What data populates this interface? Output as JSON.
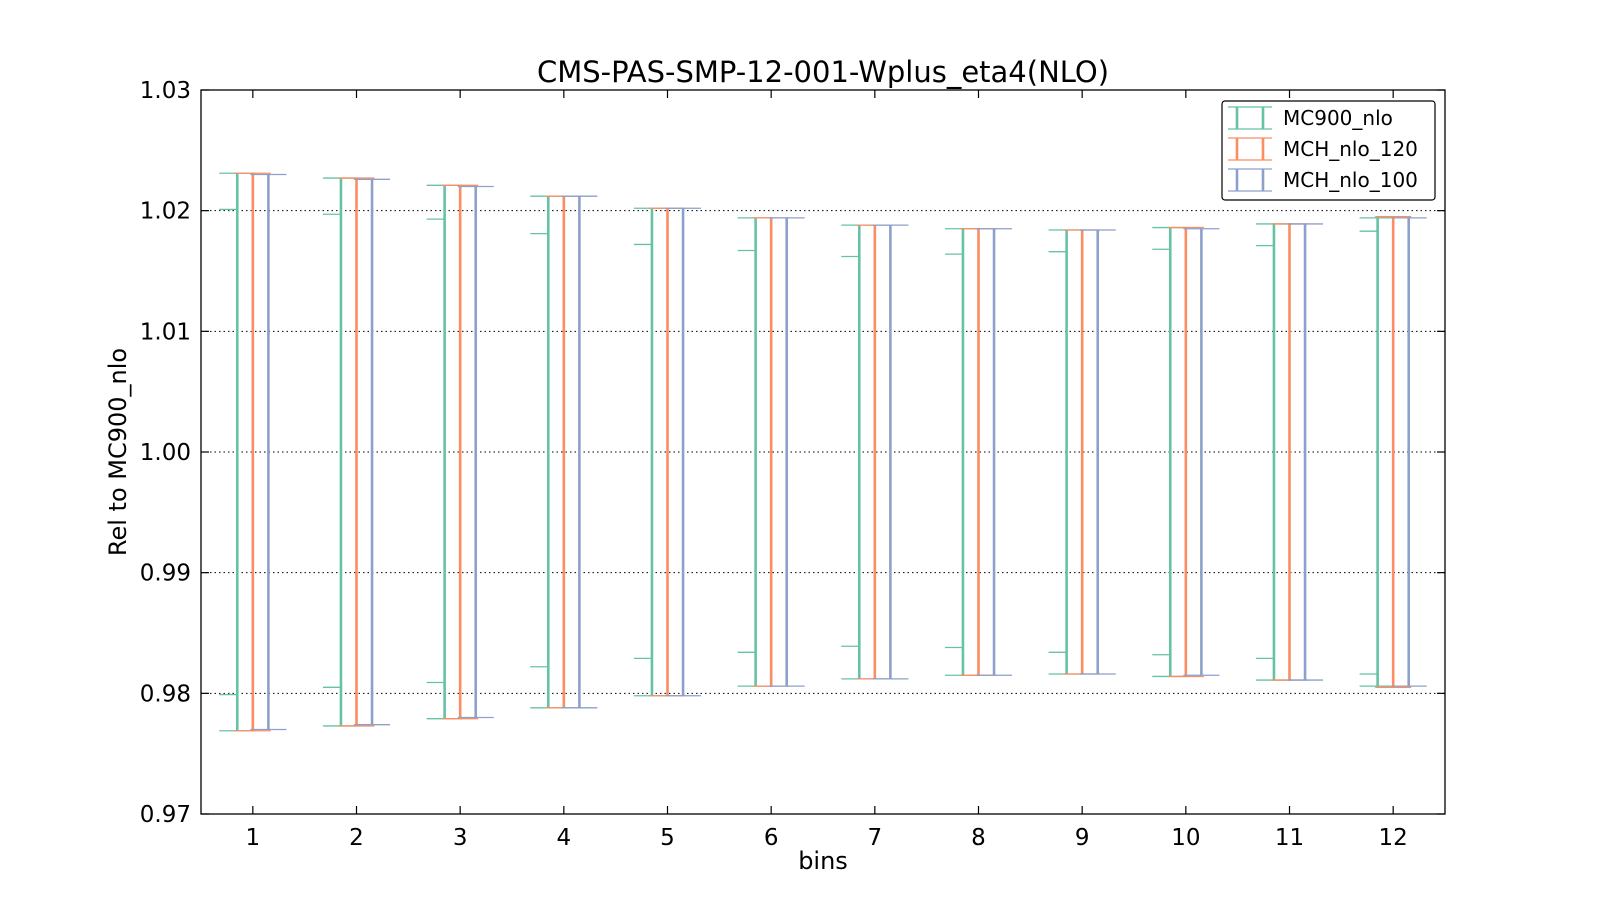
{
  "chart_data": {
    "type": "errorbar",
    "title": "CMS-PAS-SMP-12-001-Wplus_eta4(NLO)",
    "xlabel": "bins",
    "ylabel": "Rel to MC900_nlo",
    "x_ticks": [
      "1",
      "2",
      "3",
      "4",
      "5",
      "6",
      "7",
      "8",
      "9",
      "10",
      "11",
      "12"
    ],
    "xlim": [
      0.5,
      12.5
    ],
    "ylim": [
      0.97,
      1.03
    ],
    "y_ticks": [
      0.97,
      0.98,
      0.99,
      1.0,
      1.01,
      1.02,
      1.03
    ],
    "y_tick_labels": [
      "0.97",
      "0.98",
      "0.99",
      "1.00",
      "1.01",
      "1.02",
      "1.03"
    ],
    "grid": "y-dotted",
    "legend_position": "top-right",
    "series": [
      {
        "name": "MC900_nlo",
        "color": "#66c2a5",
        "x_offset": -0.15,
        "ranges": [
          [
            0.9769,
            1.0231
          ],
          [
            0.9773,
            1.0227
          ],
          [
            0.9779,
            1.0221
          ],
          [
            0.9788,
            1.0212
          ],
          [
            0.9798,
            1.0202
          ],
          [
            0.9806,
            1.0194
          ],
          [
            0.9812,
            1.0188
          ],
          [
            0.9815,
            1.0185
          ],
          [
            0.9816,
            1.0184
          ],
          [
            0.9814,
            1.0186
          ],
          [
            0.9811,
            1.0189
          ],
          [
            0.9806,
            1.0194
          ]
        ],
        "inner_ticks": [
          [
            0.9799,
            1.0201
          ],
          [
            0.9805,
            1.0197
          ],
          [
            0.9809,
            1.0193
          ],
          [
            0.9822,
            1.0181
          ],
          [
            0.9829,
            1.0172
          ],
          [
            0.9834,
            1.0167
          ],
          [
            0.9839,
            1.0162
          ],
          [
            0.9838,
            1.0164
          ],
          [
            0.9834,
            1.0166
          ],
          [
            0.9832,
            1.0168
          ],
          [
            0.9829,
            1.0171
          ],
          [
            0.9816,
            1.0183
          ]
        ]
      },
      {
        "name": "MCH_nlo_120",
        "color": "#fc8d62",
        "x_offset": 0.0,
        "ranges": [
          [
            0.9769,
            1.0231
          ],
          [
            0.9773,
            1.0227
          ],
          [
            0.9779,
            1.0221
          ],
          [
            0.9788,
            1.0212
          ],
          [
            0.9798,
            1.0202
          ],
          [
            0.9806,
            1.0194
          ],
          [
            0.9812,
            1.0188
          ],
          [
            0.9815,
            1.0185
          ],
          [
            0.9816,
            1.0184
          ],
          [
            0.9814,
            1.0186
          ],
          [
            0.9811,
            1.0189
          ],
          [
            0.9805,
            1.0195
          ]
        ]
      },
      {
        "name": "MCH_nlo_100",
        "color": "#8da0cb",
        "x_offset": 0.15,
        "ranges": [
          [
            0.977,
            1.023
          ],
          [
            0.9774,
            1.0226
          ],
          [
            0.978,
            1.022
          ],
          [
            0.9788,
            1.0212
          ],
          [
            0.9798,
            1.0202
          ],
          [
            0.9806,
            1.0194
          ],
          [
            0.9812,
            1.0188
          ],
          [
            0.9815,
            1.0185
          ],
          [
            0.9816,
            1.0184
          ],
          [
            0.9815,
            1.0185
          ],
          [
            0.9811,
            1.0189
          ],
          [
            0.9806,
            1.0194
          ]
        ]
      }
    ]
  }
}
